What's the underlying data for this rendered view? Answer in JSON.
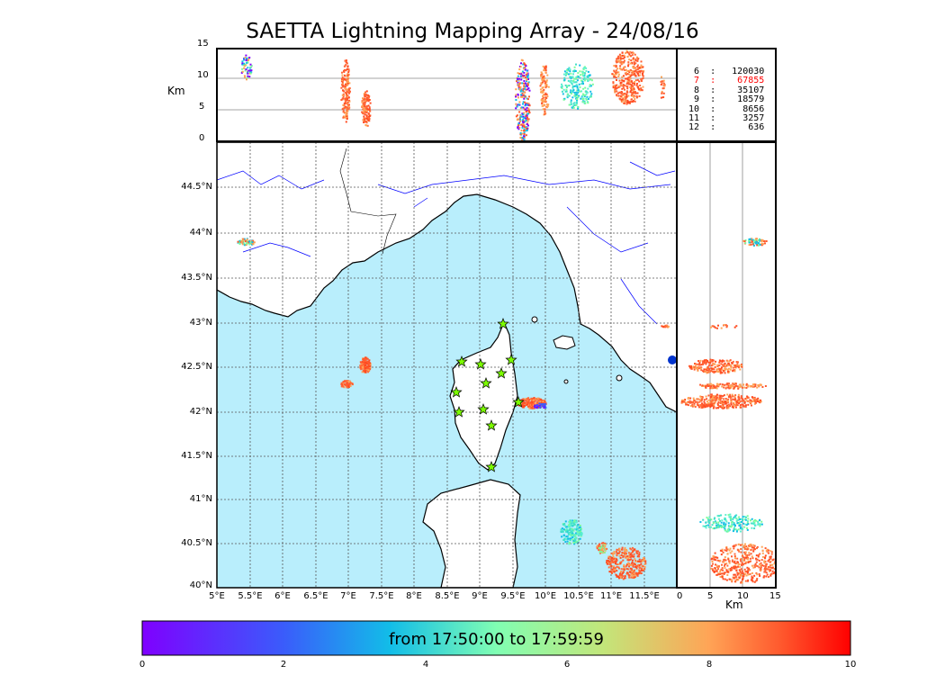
{
  "title": "SAETTA Lightning Mapping Array - 24/08/16",
  "colorbar": {
    "label": "from 17:50:00 to 17:59:59",
    "ticks": [
      "0",
      "2",
      "4",
      "6",
      "8",
      "10"
    ]
  },
  "top_panel": {
    "ylabel": "Km",
    "yticks": [
      "15",
      "10",
      "5",
      "0"
    ]
  },
  "right_panel": {
    "xlabel": "Km",
    "xticks": [
      "0",
      "5",
      "10",
      "15"
    ]
  },
  "map": {
    "lon_ticks": [
      "5°E",
      "5.5°E",
      "6°E",
      "6.5°E",
      "7°E",
      "7.5°E",
      "8°E",
      "8.5°E",
      "9°E",
      "9.5°E",
      "10°E",
      "10.5°E",
      "11°E",
      "11.5°E"
    ],
    "lat_ticks": [
      "44.5°N",
      "44°N",
      "43.5°N",
      "43°N",
      "42.5°N",
      "42°N",
      "41.5°N",
      "41°N",
      "40.5°N",
      "40°N"
    ],
    "colors": {
      "sea": "#b9eefc",
      "land": "#ffffff",
      "rivers": "#0000ff",
      "grid": "#555555",
      "stations": "#7cfc00"
    }
  },
  "station_counts": [
    {
      "station": "6",
      "count": "120030",
      "highlight": false
    },
    {
      "station": "7",
      "count": "67855",
      "highlight": true
    },
    {
      "station": "8",
      "count": "35107",
      "highlight": false
    },
    {
      "station": "9",
      "count": "18579",
      "highlight": false
    },
    {
      "station": "10",
      "count": "8656",
      "highlight": false
    },
    {
      "station": "11",
      "count": "3257",
      "highlight": false
    },
    {
      "station": "12",
      "count": "636",
      "highlight": false
    }
  ]
}
